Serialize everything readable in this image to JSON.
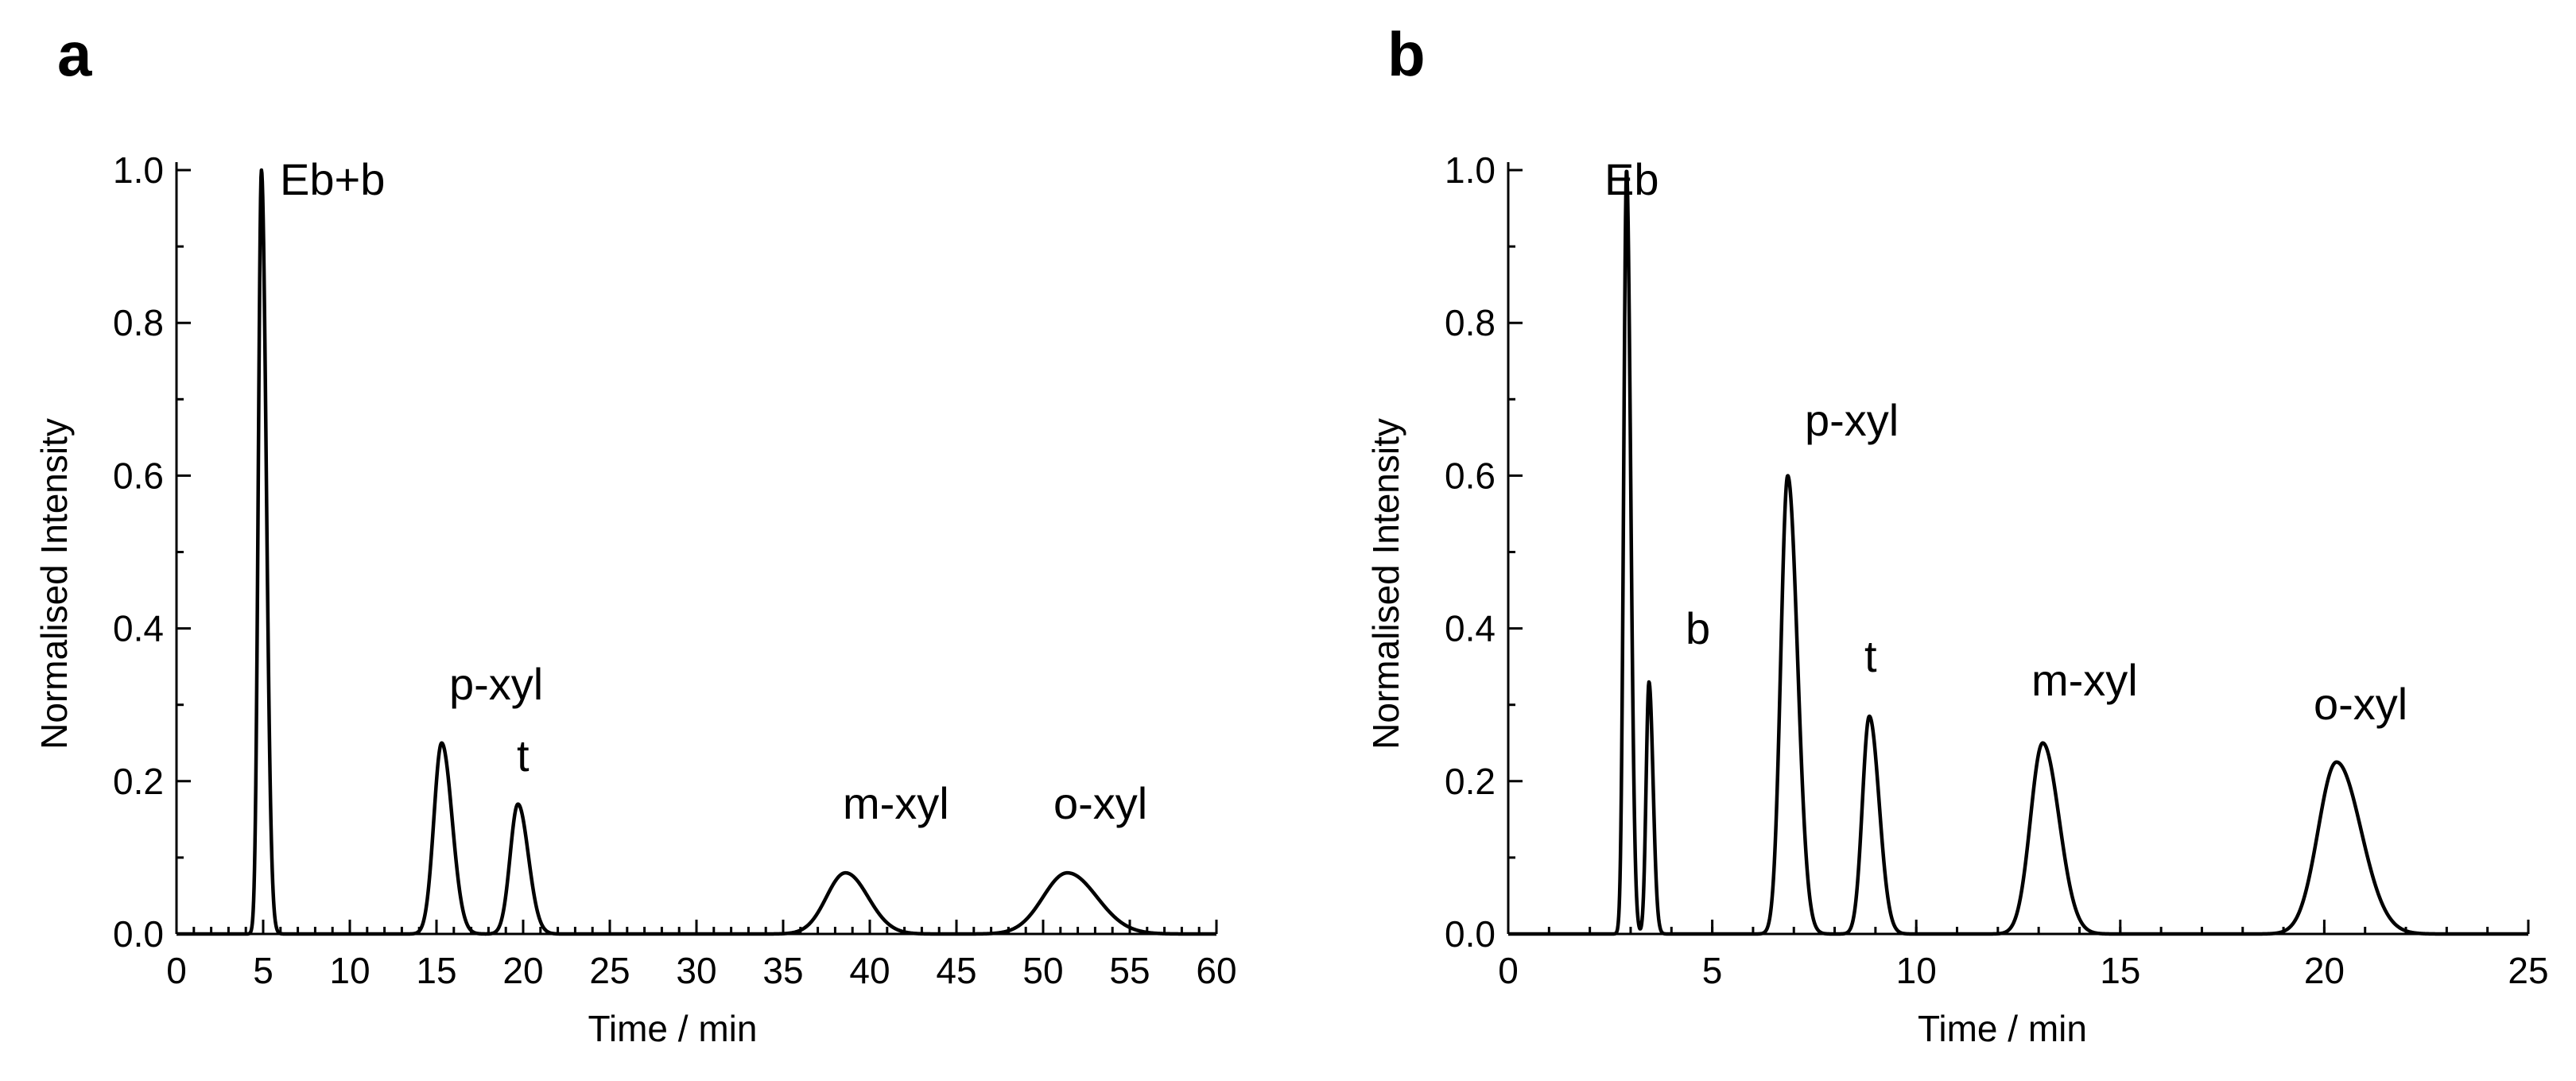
{
  "chart_data": [
    {
      "panel": "a",
      "type": "line",
      "xlabel": "Time / min",
      "ylabel": "Normalised Intensity",
      "xlim": [
        0,
        60
      ],
      "ylim": [
        0,
        1.0
      ],
      "xticks": [
        "0",
        "5",
        "10",
        "15",
        "20",
        "25",
        "30",
        "35",
        "40",
        "45",
        "50",
        "55",
        "60"
      ],
      "yticks": [
        "0.0",
        "0.2",
        "0.4",
        "0.6",
        "0.8",
        "1.0"
      ],
      "peaks": [
        {
          "label": "Eb+b",
          "x": 4.9,
          "y": 1.0,
          "sigma_left": 0.18,
          "sigma_right": 0.28
        },
        {
          "label": "p-xyl",
          "x": 15.3,
          "y": 0.25,
          "sigma_left": 0.45,
          "sigma_right": 0.6
        },
        {
          "label": "t",
          "x": 19.7,
          "y": 0.17,
          "sigma_left": 0.45,
          "sigma_right": 0.6
        },
        {
          "label": "m-xyl",
          "x": 38.6,
          "y": 0.08,
          "sigma_left": 1.1,
          "sigma_right": 1.3
        },
        {
          "label": "o-xyl",
          "x": 51.4,
          "y": 0.08,
          "sigma_left": 1.4,
          "sigma_right": 1.7
        }
      ]
    },
    {
      "panel": "b",
      "type": "line",
      "xlabel": "Time / min",
      "ylabel": "Normalised Intensity",
      "xlim": [
        0,
        25
      ],
      "ylim": [
        0,
        1.0
      ],
      "xticks": [
        "0",
        "5",
        "10",
        "15",
        "20",
        "25"
      ],
      "yticks": [
        "0.0",
        "0.2",
        "0.4",
        "0.6",
        "0.8",
        "1.0"
      ],
      "peaks": [
        {
          "label": "Eb",
          "x": 2.9,
          "y": 1.0,
          "sigma_left": 0.07,
          "sigma_right": 0.1
        },
        {
          "label": "b",
          "x": 3.45,
          "y": 0.33,
          "sigma_left": 0.07,
          "sigma_right": 0.1
        },
        {
          "label": "p-xyl",
          "x": 6.85,
          "y": 0.6,
          "sigma_left": 0.17,
          "sigma_right": 0.24
        },
        {
          "label": "t",
          "x": 8.85,
          "y": 0.285,
          "sigma_left": 0.17,
          "sigma_right": 0.24
        },
        {
          "label": "m-xyl",
          "x": 13.1,
          "y": 0.25,
          "sigma_left": 0.3,
          "sigma_right": 0.4
        },
        {
          "label": "o-xyl",
          "x": 20.3,
          "y": 0.225,
          "sigma_left": 0.45,
          "sigma_right": 0.6
        }
      ]
    }
  ]
}
